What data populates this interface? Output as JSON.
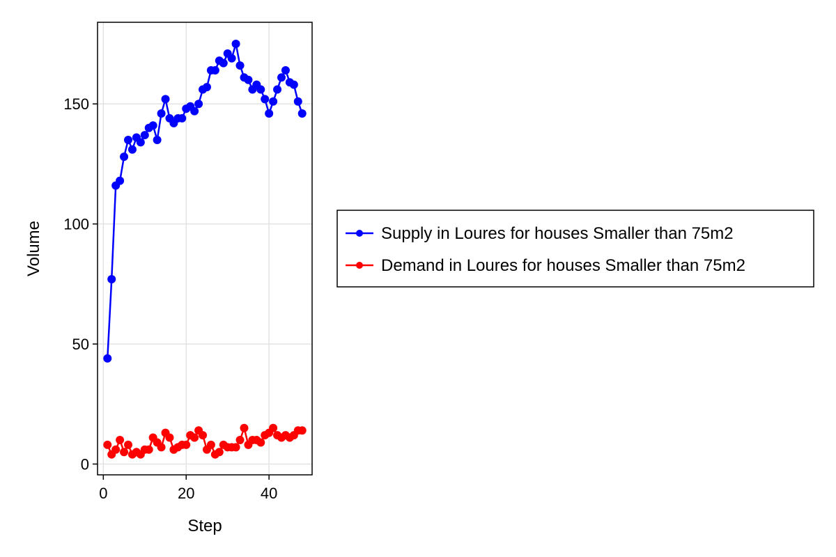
{
  "chart_data": {
    "type": "line",
    "title": "",
    "xlabel": "Step",
    "ylabel": "Volume",
    "xlim": [
      -1.4,
      50.4
    ],
    "ylim": [
      -4.5,
      184
    ],
    "xticks": [
      0,
      20,
      40
    ],
    "yticks": [
      0,
      50,
      100,
      150
    ],
    "grid": true,
    "legend_position": "right",
    "series": [
      {
        "name": "Supply in Loures for houses Smaller than 75m2",
        "color": "#0000ff",
        "x": [
          1,
          2,
          3,
          4,
          5,
          6,
          7,
          8,
          9,
          10,
          11,
          12,
          13,
          14,
          15,
          16,
          17,
          18,
          19,
          20,
          21,
          22,
          23,
          24,
          25,
          26,
          27,
          28,
          29,
          30,
          31,
          32,
          33,
          34,
          35,
          36,
          37,
          38,
          39,
          40,
          41,
          42,
          43,
          44,
          45,
          46,
          47,
          48
        ],
        "values": [
          44,
          77,
          116,
          118,
          128,
          135,
          131,
          136,
          134,
          137,
          140,
          141,
          135,
          146,
          152,
          144,
          142,
          144,
          144,
          148,
          149,
          147,
          150,
          156,
          157,
          164,
          164,
          168,
          167,
          171,
          169,
          175,
          166,
          161,
          160,
          156,
          158,
          156,
          152,
          146,
          151,
          156,
          161,
          164,
          159,
          158,
          151,
          146
        ]
      },
      {
        "name": "Demand in Loures for houses Smaller than 75m2",
        "color": "#ff0000",
        "x": [
          1,
          2,
          3,
          4,
          5,
          6,
          7,
          8,
          9,
          10,
          11,
          12,
          13,
          14,
          15,
          16,
          17,
          18,
          19,
          20,
          21,
          22,
          23,
          24,
          25,
          26,
          27,
          28,
          29,
          30,
          31,
          32,
          33,
          34,
          35,
          36,
          37,
          38,
          39,
          40,
          41,
          42,
          43,
          44,
          45,
          46,
          47,
          48
        ],
        "values": [
          8,
          4,
          6,
          10,
          5,
          8,
          4,
          5,
          4,
          6,
          6,
          11,
          9,
          7,
          13,
          11,
          6,
          7,
          8,
          8,
          12,
          11,
          14,
          12,
          6,
          8,
          4,
          5,
          8,
          7,
          7,
          7,
          10,
          15,
          8,
          10,
          10,
          9,
          12,
          13,
          15,
          12,
          11,
          12,
          11,
          12,
          14,
          14
        ]
      }
    ]
  }
}
